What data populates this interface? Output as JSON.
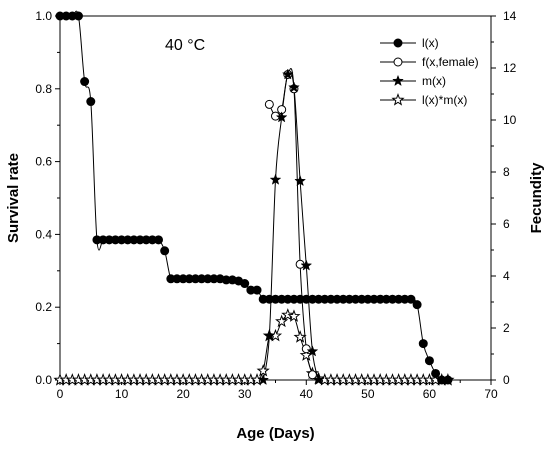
{
  "chart_data": {
    "type": "line",
    "annotation": "40 °C",
    "xlabel": "Age (Days)",
    "ylabel_left": "Survival rate",
    "ylabel_right": "Fecundity",
    "xlim": [
      0,
      70
    ],
    "ylim_left": [
      0,
      1.0
    ],
    "ylim_right": [
      0,
      14
    ],
    "x_ticks": [
      0,
      10,
      20,
      30,
      40,
      50,
      60,
      70
    ],
    "y_left_ticks": [
      0.0,
      0.2,
      0.4,
      0.6,
      0.8,
      1.0
    ],
    "y_right_ticks": [
      0,
      2,
      4,
      6,
      8,
      10,
      12,
      14
    ],
    "legend_position": "top-right",
    "grid": false,
    "series": [
      {
        "name": "l(x)",
        "axis": "left",
        "marker": "filled-circle",
        "points": [
          [
            0,
            1.0
          ],
          [
            1,
            1.0
          ],
          [
            2,
            1.0
          ],
          [
            3,
            1.0
          ],
          [
            4,
            0.82
          ],
          [
            5,
            0.765
          ],
          [
            6,
            0.385
          ],
          [
            7,
            0.385
          ],
          [
            8,
            0.385
          ],
          [
            9,
            0.385
          ],
          [
            10,
            0.385
          ],
          [
            11,
            0.385
          ],
          [
            12,
            0.385
          ],
          [
            13,
            0.385
          ],
          [
            14,
            0.385
          ],
          [
            15,
            0.385
          ],
          [
            16,
            0.385
          ],
          [
            17,
            0.355
          ],
          [
            18,
            0.278
          ],
          [
            19,
            0.278
          ],
          [
            20,
            0.278
          ],
          [
            21,
            0.278
          ],
          [
            22,
            0.278
          ],
          [
            23,
            0.278
          ],
          [
            24,
            0.278
          ],
          [
            25,
            0.278
          ],
          [
            26,
            0.278
          ],
          [
            27,
            0.275
          ],
          [
            28,
            0.275
          ],
          [
            29,
            0.272
          ],
          [
            30,
            0.265
          ],
          [
            31,
            0.247
          ],
          [
            32,
            0.247
          ],
          [
            33,
            0.222
          ],
          [
            34,
            0.222
          ],
          [
            35,
            0.222
          ],
          [
            36,
            0.222
          ],
          [
            37,
            0.222
          ],
          [
            38,
            0.222
          ],
          [
            39,
            0.222
          ],
          [
            40,
            0.222
          ],
          [
            41,
            0.222
          ],
          [
            42,
            0.222
          ],
          [
            43,
            0.222
          ],
          [
            44,
            0.222
          ],
          [
            45,
            0.222
          ],
          [
            46,
            0.222
          ],
          [
            47,
            0.222
          ],
          [
            48,
            0.222
          ],
          [
            49,
            0.222
          ],
          [
            50,
            0.222
          ],
          [
            51,
            0.222
          ],
          [
            52,
            0.222
          ],
          [
            53,
            0.222
          ],
          [
            54,
            0.222
          ],
          [
            55,
            0.222
          ],
          [
            56,
            0.222
          ],
          [
            57,
            0.222
          ],
          [
            58,
            0.207
          ],
          [
            59,
            0.1
          ],
          [
            60,
            0.053
          ],
          [
            61,
            0.018
          ],
          [
            62,
            0.0
          ],
          [
            63,
            0.0
          ]
        ]
      },
      {
        "name": "f(x,female)",
        "axis": "right",
        "marker": "open-circle",
        "points": [
          [
            34,
            10.6
          ],
          [
            35,
            10.15
          ],
          [
            36,
            10.4
          ],
          [
            37,
            11.75
          ],
          [
            38,
            11.2
          ],
          [
            39,
            4.45
          ],
          [
            40,
            1.2
          ],
          [
            41,
            0.2
          ]
        ]
      },
      {
        "name": "m(x)",
        "axis": "right",
        "marker": "filled-star",
        "points": [
          [
            33,
            0.0
          ],
          [
            34,
            1.7
          ],
          [
            35,
            7.7
          ],
          [
            36,
            10.1
          ],
          [
            37,
            11.75
          ],
          [
            38,
            11.25
          ],
          [
            39,
            7.65
          ],
          [
            40,
            4.4
          ],
          [
            41,
            1.1
          ],
          [
            42,
            0.0
          ]
        ]
      },
      {
        "name": "l(x)*m(x)",
        "axis": "right",
        "marker": "open-star",
        "points": [
          [
            0,
            0
          ],
          [
            1,
            0
          ],
          [
            2,
            0
          ],
          [
            3,
            0
          ],
          [
            4,
            0
          ],
          [
            5,
            0
          ],
          [
            6,
            0
          ],
          [
            7,
            0
          ],
          [
            8,
            0
          ],
          [
            9,
            0
          ],
          [
            10,
            0
          ],
          [
            11,
            0
          ],
          [
            12,
            0
          ],
          [
            13,
            0
          ],
          [
            14,
            0
          ],
          [
            15,
            0
          ],
          [
            16,
            0
          ],
          [
            17,
            0
          ],
          [
            18,
            0
          ],
          [
            19,
            0
          ],
          [
            20,
            0
          ],
          [
            21,
            0
          ],
          [
            22,
            0
          ],
          [
            23,
            0
          ],
          [
            24,
            0
          ],
          [
            25,
            0
          ],
          [
            26,
            0
          ],
          [
            27,
            0
          ],
          [
            28,
            0
          ],
          [
            29,
            0
          ],
          [
            30,
            0
          ],
          [
            31,
            0
          ],
          [
            32,
            0
          ],
          [
            33,
            0.35
          ],
          [
            34,
            1.7
          ],
          [
            35,
            1.7
          ],
          [
            36,
            2.25
          ],
          [
            37,
            2.5
          ],
          [
            38,
            2.45
          ],
          [
            39,
            1.65
          ],
          [
            40,
            0.95
          ],
          [
            41,
            0.25
          ],
          [
            42,
            0.05
          ],
          [
            43,
            0
          ],
          [
            44,
            0
          ],
          [
            45,
            0
          ],
          [
            46,
            0
          ],
          [
            47,
            0
          ],
          [
            48,
            0
          ],
          [
            49,
            0
          ],
          [
            50,
            0
          ],
          [
            51,
            0
          ],
          [
            52,
            0
          ],
          [
            53,
            0
          ],
          [
            54,
            0
          ],
          [
            55,
            0
          ],
          [
            56,
            0
          ],
          [
            57,
            0
          ],
          [
            58,
            0
          ],
          [
            59,
            0
          ],
          [
            60,
            0
          ],
          [
            61,
            0
          ],
          [
            62,
            0
          ],
          [
            63,
            0
          ]
        ]
      }
    ]
  }
}
